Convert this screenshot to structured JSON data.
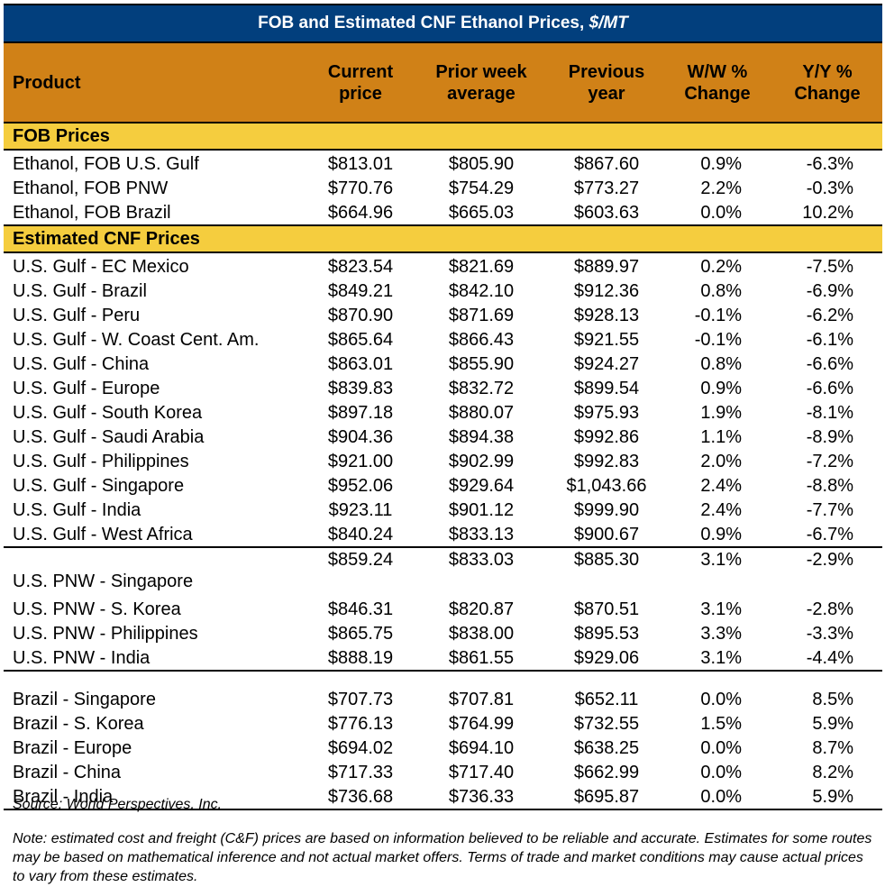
{
  "title": {
    "main": "FOB and Estimated CNF Ethanol Prices, ",
    "unit": "$/MT"
  },
  "colors": {
    "title_bg": "#023f7d",
    "header_bg": "#d08117",
    "section_bg": "#f5cd3e"
  },
  "columns": [
    {
      "line1": "Product",
      "line2": ""
    },
    {
      "line1": "Current",
      "line2": "price"
    },
    {
      "line1": "Prior week",
      "line2": "average"
    },
    {
      "line1": "Previous",
      "line2": "year"
    },
    {
      "line1": "W/W %",
      "line2": "Change"
    },
    {
      "line1": "Y/Y %",
      "line2": "Change"
    }
  ],
  "sections": {
    "fob": {
      "label": "FOB Prices",
      "rows": [
        [
          "Ethanol, FOB U.S. Gulf",
          "$813.01",
          "$805.90",
          "$867.60",
          "0.9%",
          "-6.3%"
        ],
        [
          "Ethanol, FOB PNW",
          "$770.76",
          "$754.29",
          "$773.27",
          "2.2%",
          "-0.3%"
        ],
        [
          "Ethanol, FOB Brazil",
          "$664.96",
          "$665.03",
          "$603.63",
          "0.0%",
          "10.2%"
        ]
      ]
    },
    "cnf": {
      "label": "Estimated CNF Prices",
      "gulf_rows": [
        [
          "U.S. Gulf - EC Mexico",
          "$823.54",
          "$821.69",
          "$889.97",
          "0.2%",
          "-7.5%"
        ],
        [
          "U.S. Gulf - Brazil",
          "$849.21",
          "$842.10",
          "$912.36",
          "0.8%",
          "-6.9%"
        ],
        [
          "U.S. Gulf - Peru",
          "$870.90",
          "$871.69",
          "$928.13",
          "-0.1%",
          "-6.2%"
        ],
        [
          "U.S. Gulf - W. Coast Cent. Am.",
          "$865.64",
          "$866.43",
          "$921.55",
          "-0.1%",
          "-6.1%"
        ],
        [
          "U.S. Gulf - China",
          "$863.01",
          "$855.90",
          "$924.27",
          "0.8%",
          "-6.6%"
        ],
        [
          "U.S. Gulf - Europe",
          "$839.83",
          "$832.72",
          "$899.54",
          "0.9%",
          "-6.6%"
        ],
        [
          "U.S. Gulf - South Korea",
          "$897.18",
          "$880.07",
          "$975.93",
          "1.9%",
          "-8.1%"
        ],
        [
          "U.S. Gulf - Saudi Arabia",
          "$904.36",
          "$894.38",
          "$992.86",
          "1.1%",
          "-8.9%"
        ],
        [
          "U.S. Gulf - Philippines",
          "$921.00",
          "$902.99",
          "$992.83",
          "2.0%",
          "-7.2%"
        ],
        [
          "U.S. Gulf - Singapore",
          "$952.06",
          "$929.64",
          "$1,043.66",
          "2.4%",
          "-8.8%"
        ],
        [
          "U.S. Gulf - India",
          "$923.11",
          "$901.12",
          "$999.90",
          "2.4%",
          "-7.7%"
        ],
        [
          "U.S. Gulf - West Africa",
          "$840.24",
          "$833.13",
          "$900.67",
          "0.9%",
          "-6.7%"
        ]
      ],
      "pnw_rows": [
        [
          "U.S. PNW - Singapore",
          "$859.24",
          "$833.03",
          "$885.30",
          "3.1%",
          "-2.9%"
        ],
        [
          "U.S. PNW - S. Korea",
          "$846.31",
          "$820.87",
          "$870.51",
          "3.1%",
          "-2.8%"
        ],
        [
          "U.S. PNW - Philippines",
          "$865.75",
          "$838.00",
          "$895.53",
          "3.3%",
          "-3.3%"
        ],
        [
          "U.S. PNW - India",
          "$888.19",
          "$861.55",
          "$929.06",
          "3.1%",
          "-4.4%"
        ]
      ],
      "brazil_rows": [
        [
          "Brazil - Singapore",
          "$707.73",
          "$707.81",
          "$652.11",
          "0.0%",
          "8.5%"
        ],
        [
          "Brazil - S. Korea",
          "$776.13",
          "$764.99",
          "$732.55",
          "1.5%",
          "5.9%"
        ],
        [
          "Brazil - Europe",
          "$694.02",
          "$694.10",
          "$638.25",
          "0.0%",
          "8.7%"
        ],
        [
          "Brazil - China",
          "$717.33",
          "$717.40",
          "$662.99",
          "0.0%",
          "8.2%"
        ],
        [
          "Brazil - India",
          "$736.68",
          "$736.33",
          "$695.87",
          "0.0%",
          "5.9%"
        ]
      ]
    }
  },
  "source": "Source: World Perspectives, Inc.",
  "note": "Note: estimated cost and freight (C&F) prices are based on information believed to be reliable and accurate. Estimates for some routes may be based on mathematical inference and not actual market offers. Terms of trade and market conditions may cause actual prices to vary from these estimates."
}
